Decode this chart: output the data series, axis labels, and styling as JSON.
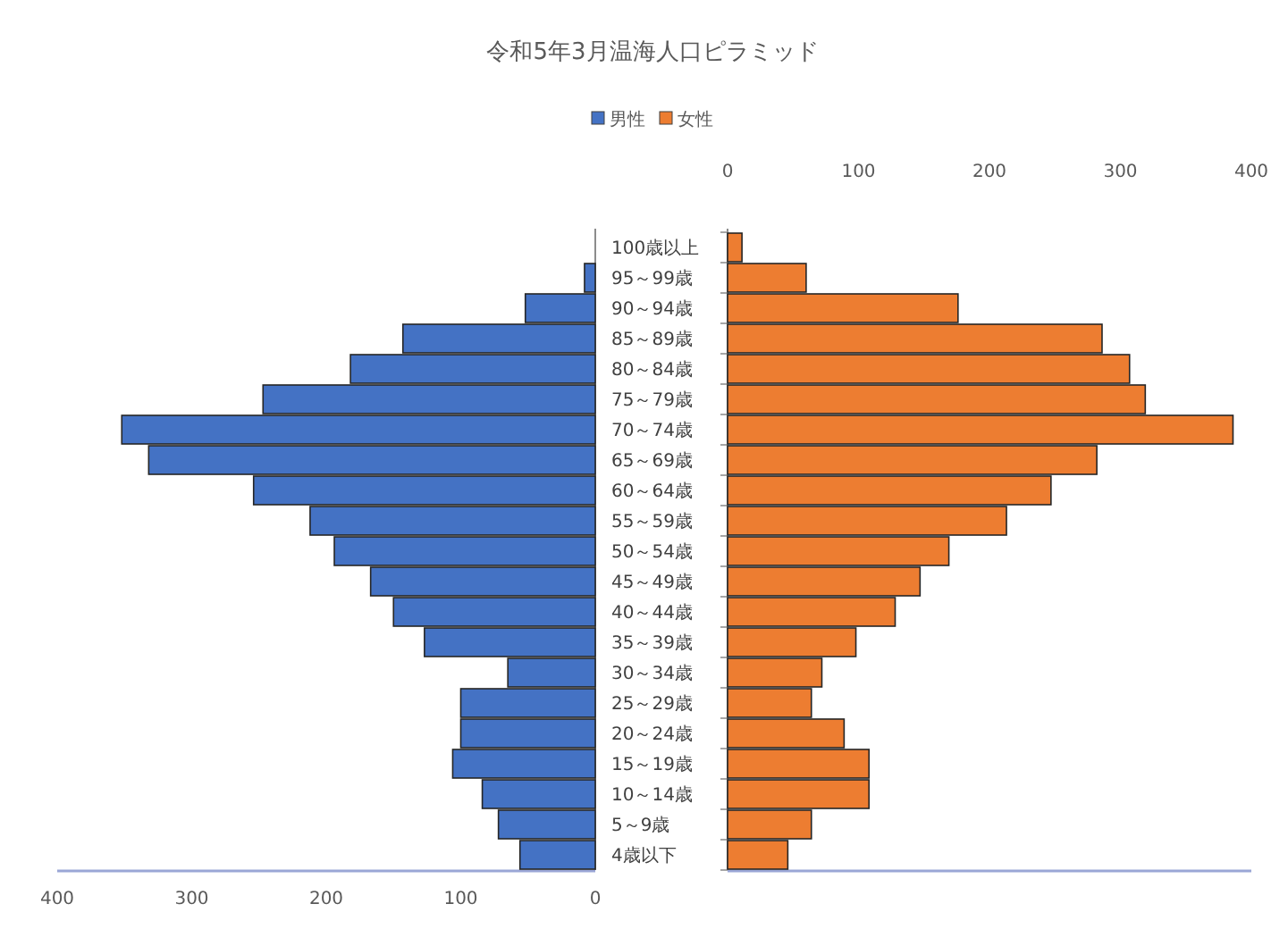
{
  "chart_data": [
    {
      "type": "bar",
      "orientation": "horizontal",
      "title": "令和5年3月温海人口ピラミッド",
      "categories": [
        "100歳以上",
        "95～99歳",
        "90～94歳",
        "85～89歳",
        "80～84歳",
        "75～79歳",
        "70～74歳",
        "65～69歳",
        "60～64歳",
        "55～59歳",
        "50～54歳",
        "45～49歳",
        "40～44歳",
        "35～39歳",
        "30～34歳",
        "25～29歳",
        "20～24歳",
        "15～19歳",
        "10～14歳",
        "5～9歳",
        "4歳以下"
      ],
      "series": [
        {
          "name": "男性",
          "color": "#4472c4",
          "values": [
            0,
            8,
            52,
            143,
            182,
            247,
            352,
            332,
            254,
            212,
            194,
            167,
            150,
            127,
            65,
            100,
            100,
            106,
            84,
            72,
            56
          ]
        }
      ],
      "xlim": [
        400,
        0
      ],
      "xticks": [
        400,
        300,
        200,
        100,
        0
      ],
      "legend": "top"
    },
    {
      "type": "bar",
      "orientation": "horizontal",
      "categories": [
        null,
        null,
        null,
        null,
        null,
        null,
        null,
        null,
        null,
        null,
        null,
        null,
        null,
        null,
        null,
        null,
        null,
        null,
        null,
        null,
        null
      ],
      "series": [
        {
          "name": "女性",
          "color": "#ed7d31",
          "values": [
            11,
            60,
            176,
            286,
            307,
            319,
            386,
            282,
            247,
            213,
            169,
            147,
            128,
            98,
            72,
            64,
            89,
            108,
            108,
            64,
            46
          ]
        }
      ],
      "xlim": [
        0,
        400
      ],
      "xticks": [
        0,
        100,
        200,
        300,
        400
      ],
      "legend": "top"
    }
  ]
}
